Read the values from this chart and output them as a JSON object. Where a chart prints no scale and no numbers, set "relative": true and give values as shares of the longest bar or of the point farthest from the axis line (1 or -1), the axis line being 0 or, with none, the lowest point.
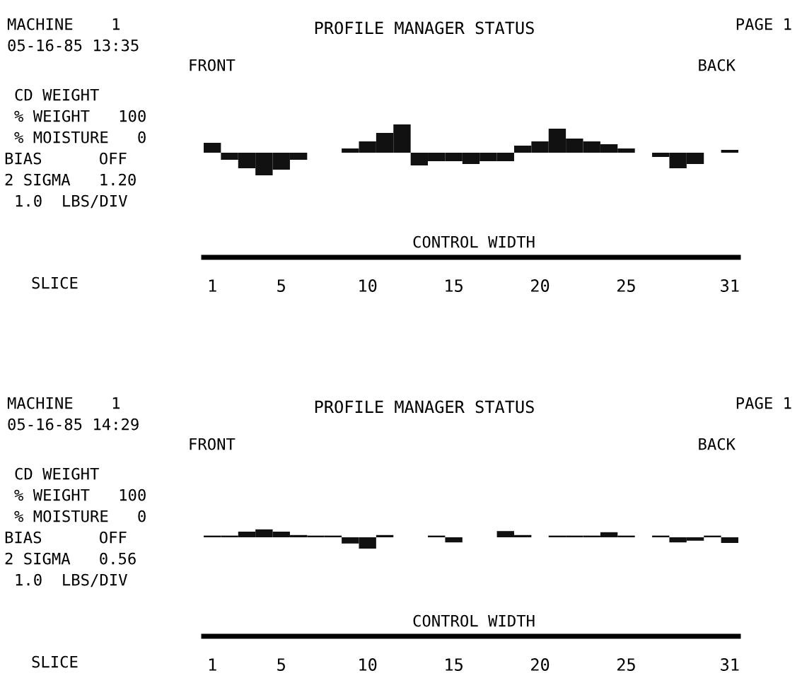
{
  "chart_data": [
    {
      "type": "bar",
      "relative": true,
      "title": "PROFILE MANAGER STATUS",
      "color": "#111111",
      "categories": [
        "1",
        null,
        null,
        null,
        "5",
        null,
        null,
        null,
        null,
        "10",
        null,
        null,
        null,
        null,
        "15",
        null,
        null,
        null,
        null,
        "20",
        null,
        null,
        null,
        null,
        "25",
        null,
        null,
        null,
        null,
        null,
        "31"
      ],
      "values": [
        0.35,
        -0.25,
        -0.55,
        -0.8,
        -0.6,
        -0.25,
        null,
        null,
        0.15,
        0.4,
        0.7,
        1,
        -0.45,
        -0.3,
        -0.3,
        -0.4,
        -0.3,
        -0.3,
        0.25,
        0.4,
        0.85,
        0.5,
        0.4,
        0.3,
        0.15,
        null,
        -0.15,
        -0.55,
        -0.4,
        null,
        0.1
      ],
      "annotations": [
        "MACHINE    1",
        "05-16-85 13:35",
        "PAGE 1",
        "FRONT",
        "BACK",
        "CD WEIGHT",
        "% WEIGHT   100",
        "% MOISTURE   0",
        "BIAS      OFF",
        "2 SIGMA   1.20",
        "1.0  LBS/DIV",
        "CONTROL WIDTH",
        "SLICE"
      ]
    },
    {
      "type": "bar",
      "relative": true,
      "title": "PROFILE MANAGER STATUS",
      "color": "#111111",
      "categories": [
        "1",
        null,
        null,
        null,
        "5",
        null,
        null,
        null,
        null,
        "10",
        null,
        null,
        null,
        null,
        "15",
        null,
        null,
        null,
        null,
        "20",
        null,
        null,
        null,
        null,
        "25",
        null,
        null,
        null,
        null,
        null,
        "31"
      ],
      "values": [
        0.15,
        0.15,
        0.5,
        0.7,
        0.5,
        0.2,
        0.15,
        0.15,
        -0.55,
        -1,
        0.2,
        null,
        null,
        0.15,
        -0.45,
        null,
        null,
        0.55,
        0.2,
        null,
        0.15,
        0.15,
        0.15,
        0.45,
        0.15,
        null,
        0.15,
        -0.45,
        -0.3,
        0.15,
        -0.5
      ],
      "annotations": [
        "MACHINE    1",
        "05-16-85 14:29",
        "PAGE 1",
        "FRONT",
        "BACK",
        "CD WEIGHT",
        "% WEIGHT   100",
        "% MOISTURE   0",
        "BIAS      OFF",
        "2 SIGMA   0.56",
        "1.0  LBS/DIV",
        "CONTROL WIDTH",
        "SLICE"
      ]
    }
  ]
}
